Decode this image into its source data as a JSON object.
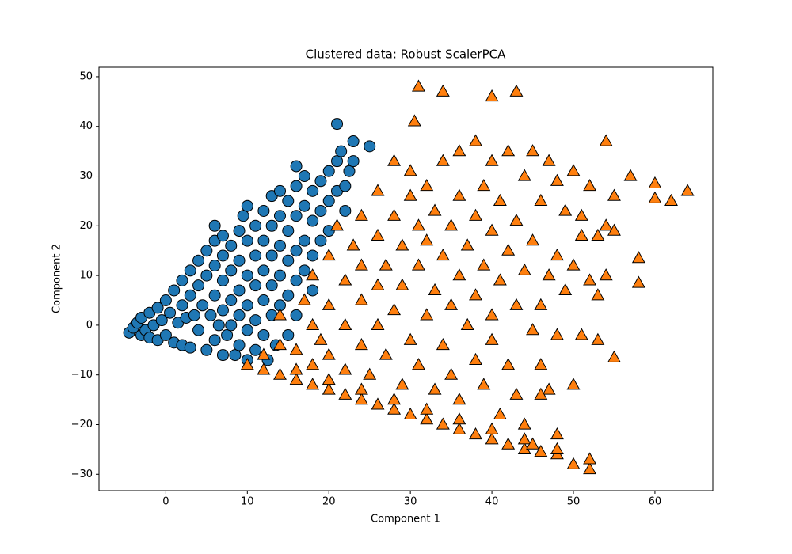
{
  "chart_data": {
    "type": "scatter",
    "title": "Clustered data: Robust ScalerPCA",
    "x_label": "Component 1",
    "y_label": "Component 2",
    "xlim": [
      -8.2,
      67.1
    ],
    "ylim": [
      -33.3,
      51.9
    ],
    "xticks": [
      0,
      10,
      20,
      30,
      40,
      50,
      60
    ],
    "yticks": [
      {
        "value": -30,
        "label": "−30"
      },
      {
        "value": -20,
        "label": "−20"
      },
      {
        "value": -10,
        "label": "−10"
      },
      0,
      10,
      20,
      30,
      40,
      50
    ],
    "grid": false,
    "series": [
      {
        "color": "#1f77b4",
        "marker": "circle",
        "x": [
          -4.5,
          -4,
          -3.5,
          -3,
          -3,
          -2.5,
          -2,
          -2,
          -1.5,
          -1,
          -1,
          -0.5,
          0,
          0,
          0.5,
          1,
          1,
          1.5,
          2,
          2,
          2,
          2.5,
          3,
          3,
          3,
          3.5,
          4,
          4,
          4,
          4.5,
          5,
          5,
          5,
          5.5,
          6,
          6,
          6,
          6,
          6,
          6.5,
          7,
          7,
          7,
          7,
          7,
          7.5,
          8,
          8,
          8,
          8,
          8.5,
          9,
          9,
          9,
          9,
          9,
          9.5,
          10,
          10,
          10,
          10,
          10,
          10,
          11,
          11,
          11,
          11,
          11,
          12,
          12,
          12,
          12,
          12,
          12.5,
          13,
          13,
          13,
          13,
          13,
          13.5,
          14,
          14,
          14,
          14,
          14,
          15,
          15,
          15,
          15,
          15,
          16,
          16,
          16,
          16,
          16,
          16,
          17,
          17,
          17,
          17,
          18,
          18,
          18,
          18,
          19,
          19,
          19,
          20,
          20,
          20,
          21,
          21,
          21,
          21.5,
          22,
          22,
          22.5,
          23,
          23,
          25
        ],
        "y": [
          -1.5,
          -0.5,
          0.5,
          -2,
          1.5,
          -1,
          2.5,
          -2.5,
          0,
          3.5,
          -3,
          1,
          5,
          -2,
          2.5,
          7,
          -3.5,
          0.5,
          9,
          4,
          -4,
          1.5,
          11,
          6,
          -4.5,
          2,
          13,
          8,
          -1,
          4,
          15,
          10,
          -5,
          2,
          17,
          20,
          12,
          6,
          -3,
          0,
          18,
          14,
          9,
          3,
          -6,
          -2,
          16,
          11,
          5,
          0,
          -6,
          19,
          13,
          7,
          2,
          -4,
          22,
          17,
          24,
          10,
          4,
          -1,
          -7,
          20,
          14,
          8,
          1,
          -5,
          23,
          17,
          11,
          5,
          -2,
          -7,
          26,
          20,
          14,
          8,
          2,
          -4,
          27,
          22,
          16,
          10,
          4,
          25,
          19,
          13,
          6,
          -2,
          32,
          28,
          22,
          15,
          9,
          2,
          30,
          24,
          17,
          11,
          27,
          21,
          14,
          7,
          29,
          23,
          17,
          31,
          25,
          19,
          40.5,
          33,
          27,
          35,
          28,
          23,
          31,
          33,
          37,
          36
        ]
      },
      {
        "color": "#ff7f0e",
        "marker": "triangle",
        "x": [
          10,
          12,
          14,
          16,
          18,
          20,
          22,
          24,
          26,
          28,
          30,
          32,
          34,
          36,
          38,
          40,
          42,
          44,
          46,
          48,
          50,
          52,
          52,
          48,
          44,
          40,
          36,
          32,
          28,
          24,
          20,
          16,
          12,
          14,
          14,
          16,
          17,
          18,
          18,
          18,
          19,
          20,
          20,
          20,
          21,
          22,
          22,
          22,
          23,
          24,
          24,
          24,
          24,
          25,
          26,
          26,
          26,
          26,
          27,
          27,
          28,
          28,
          28,
          29,
          29,
          29,
          30,
          30,
          30,
          31,
          31,
          31,
          31,
          30.5,
          32,
          32,
          32,
          33,
          33,
          33,
          34,
          34,
          34,
          34,
          35,
          35,
          35,
          36,
          36,
          36,
          36,
          37,
          37,
          38,
          38,
          38,
          38,
          39,
          39,
          39,
          40,
          40,
          40,
          40,
          40,
          41,
          41,
          41,
          42,
          42,
          42,
          43,
          43,
          43,
          43,
          44,
          44,
          44,
          45,
          45,
          45,
          46,
          46,
          46,
          47,
          47,
          47,
          48,
          48,
          48,
          48,
          49,
          49,
          50,
          50,
          50,
          51,
          51,
          52,
          52,
          53,
          53,
          54,
          54,
          54,
          55,
          55,
          55,
          57,
          58,
          58,
          60,
          60,
          62,
          64,
          53,
          51,
          46,
          45
        ],
        "y": [
          -8,
          -9,
          -10,
          -11,
          -12,
          -13,
          -14,
          -15,
          -16,
          -17,
          -18,
          -19,
          -20,
          -21,
          -22,
          -23,
          -24,
          -25,
          -25.5,
          -26,
          -28,
          -29,
          -27,
          -25,
          -23,
          -21,
          -19,
          -17,
          -15,
          -13,
          -11,
          -9,
          -6,
          -4,
          2,
          -5,
          5,
          -8,
          0,
          10,
          -3,
          4,
          14,
          -6,
          20,
          -9,
          0,
          9,
          16,
          -4,
          5,
          12,
          22,
          -10,
          0,
          8,
          18,
          27,
          -6,
          12,
          3,
          22,
          33,
          -12,
          8,
          16,
          -3,
          26,
          31,
          -8,
          12,
          48,
          20,
          41,
          2,
          17,
          28,
          -13,
          7,
          23,
          -4,
          14,
          47,
          33,
          -10,
          4,
          20,
          -15,
          10,
          26,
          35,
          0,
          16,
          -7,
          6,
          22,
          37,
          -12,
          12,
          28,
          -3,
          2,
          19,
          46,
          33,
          -18,
          9,
          25,
          -8,
          15,
          35,
          -14,
          4,
          47,
          21,
          -20,
          11,
          30,
          -1,
          17,
          35,
          -8,
          4,
          25,
          -13,
          10,
          33,
          -22,
          -2,
          14,
          29,
          7,
          23,
          -12,
          12,
          31,
          -2,
          22,
          9,
          28,
          -3,
          18,
          10,
          20,
          37,
          -6.5,
          19,
          26,
          30,
          8.5,
          13.5,
          28.5,
          25.5,
          25,
          27,
          6,
          18,
          -14,
          -24
        ]
      }
    ]
  }
}
